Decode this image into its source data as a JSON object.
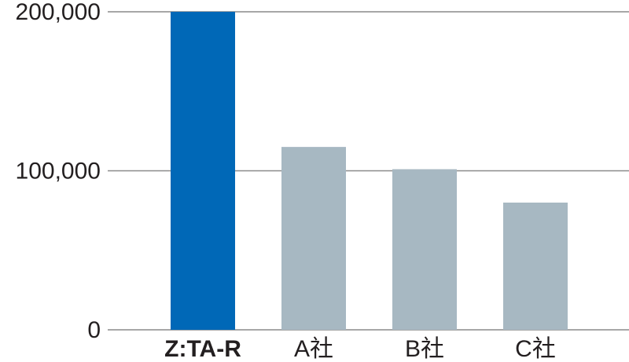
{
  "chart_data": {
    "type": "bar",
    "categories": [
      "Z:TA-R",
      "A社",
      "B社",
      "C社"
    ],
    "values": [
      200000,
      115000,
      101000,
      80000
    ],
    "colors": [
      "#0068b7",
      "#a7b8c2",
      "#a7b8c2",
      "#a7b8c2"
    ],
    "ylim": [
      0,
      200000
    ],
    "yticks": [
      0,
      {
        "value": 100000,
        "label": "100,000"
      },
      {
        "value": 200000,
        "label": "200,000"
      }
    ],
    "grid": true
  }
}
